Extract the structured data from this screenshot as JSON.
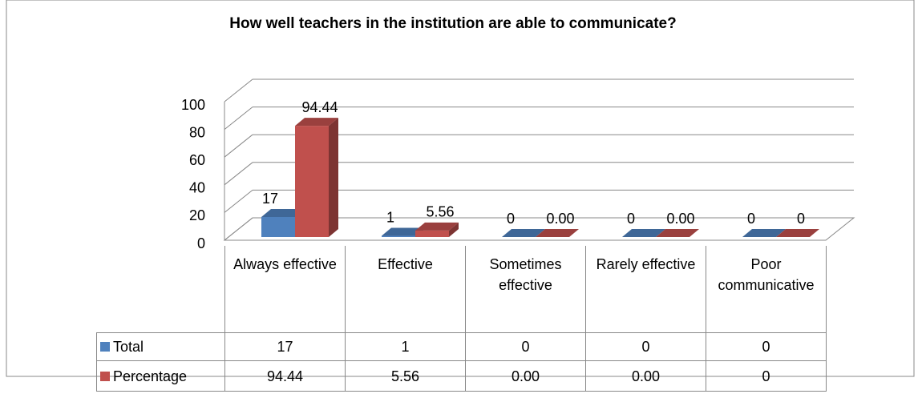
{
  "chart_data": {
    "type": "bar3d",
    "title": "How well teachers in the institution are able to communicate?",
    "categories": [
      "Always effective",
      "Effective",
      "Sometimes effective",
      "Rarely effective",
      "Poor communicative"
    ],
    "series": [
      {
        "name": "Total",
        "color": "#4f81bd",
        "values": [
          17,
          1,
          0,
          0,
          0
        ]
      },
      {
        "name": "Percentage",
        "color": "#c0504d",
        "values": [
          94.44,
          5.56,
          0,
          0,
          0
        ],
        "value_labels": [
          "94.44",
          "5.56",
          "0.00",
          "0.00",
          "0"
        ]
      }
    ],
    "ylim": [
      0,
      100
    ],
    "yticks": [
      0,
      20,
      40,
      60,
      80,
      100
    ],
    "grid": true,
    "data_table": true
  }
}
